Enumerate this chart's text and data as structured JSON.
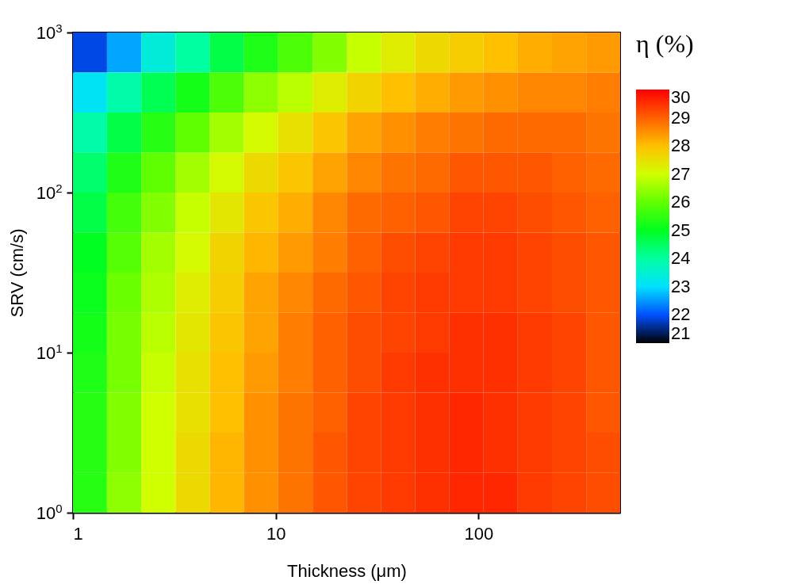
{
  "chart_data": {
    "type": "heatmap",
    "xlabel": "Thickness (μm)",
    "ylabel": "SRV (cm/s)",
    "clabel": "η (%)",
    "log": "xy",
    "xlim": [
      1,
      500
    ],
    "xticks": [
      1,
      10,
      100
    ],
    "ylim": [
      1,
      1000
    ],
    "yticks": [
      {
        "value": 1,
        "label": "10$^{0}$"
      },
      {
        "value": 10,
        "label": "10$^{1}$"
      },
      {
        "value": 100,
        "label": "10$^{2}$"
      },
      {
        "value": 1000,
        "label": "10$^{3}$"
      }
    ],
    "x": [
      1.21,
      1.79,
      2.64,
      3.9,
      5.74,
      8.47,
      12.5,
      18.5,
      27.2,
      40.1,
      59.2,
      87.3,
      128.5,
      189.7,
      280,
      413
    ],
    "y": [
      750,
      422,
      237,
      133,
      75,
      42.2,
      23.7,
      13.3,
      7.5,
      4.22,
      2.37,
      1.33
    ],
    "cells": [
      [
        21.9,
        22.6,
        23.4,
        24.0,
        24.7,
        25.3,
        25.8,
        26.3,
        26.9,
        27.3,
        27.6,
        27.8,
        28.0,
        28.2,
        28.3,
        28.4
      ],
      [
        23.1,
        23.9,
        24.6,
        25.2,
        25.8,
        26.4,
        26.8,
        27.3,
        27.7,
        28.0,
        28.2,
        28.4,
        28.5,
        28.6,
        28.6,
        28.7
      ],
      [
        23.9,
        24.7,
        25.4,
        26.0,
        26.6,
        27.1,
        27.5,
        27.9,
        28.3,
        28.5,
        28.7,
        28.8,
        28.9,
        28.9,
        28.9,
        28.8
      ],
      [
        24.4,
        25.3,
        26.0,
        26.6,
        27.1,
        27.6,
        27.9,
        28.3,
        28.6,
        28.8,
        28.9,
        29.1,
        29.1,
        29.1,
        29.0,
        28.9
      ],
      [
        24.7,
        25.7,
        26.3,
        26.9,
        27.4,
        27.9,
        28.2,
        28.6,
        28.9,
        29.0,
        29.1,
        29.3,
        29.3,
        29.2,
        29.1,
        29.0
      ],
      [
        25.0,
        25.9,
        26.6,
        27.1,
        27.7,
        28.1,
        28.4,
        28.7,
        29.0,
        29.2,
        29.3,
        29.4,
        29.4,
        29.3,
        29.2,
        29.1
      ],
      [
        25.1,
        26.1,
        26.7,
        27.3,
        27.8,
        28.3,
        28.6,
        28.9,
        29.1,
        29.3,
        29.4,
        29.4,
        29.4,
        29.3,
        29.2,
        29.1
      ],
      [
        25.2,
        26.2,
        26.8,
        27.4,
        27.9,
        28.3,
        28.7,
        29.0,
        29.2,
        29.3,
        29.4,
        29.5,
        29.5,
        29.4,
        29.3,
        29.1
      ],
      [
        25.3,
        26.2,
        26.9,
        27.5,
        28.0,
        28.4,
        28.7,
        29.0,
        29.2,
        29.4,
        29.5,
        29.5,
        29.5,
        29.4,
        29.3,
        29.1
      ],
      [
        25.4,
        26.3,
        27.0,
        27.5,
        28.0,
        28.5,
        28.8,
        29.0,
        29.3,
        29.4,
        29.5,
        29.6,
        29.5,
        29.4,
        29.3,
        29.1
      ],
      [
        25.4,
        26.3,
        27.0,
        27.6,
        28.1,
        28.5,
        28.8,
        29.1,
        29.3,
        29.4,
        29.5,
        29.6,
        29.5,
        29.4,
        29.3,
        29.2
      ],
      [
        25.4,
        26.4,
        27.0,
        27.6,
        28.1,
        28.5,
        28.8,
        29.1,
        29.3,
        29.4,
        29.5,
        29.6,
        29.6,
        29.4,
        29.3,
        29.2
      ]
    ],
    "clim": [
      21,
      30
    ],
    "cticks": [
      21,
      22,
      23,
      24,
      25,
      26,
      27,
      28,
      29,
      30
    ],
    "colors": [
      "#000000",
      "#0050ff",
      "#00e0ff",
      "#00ffa0",
      "#00ff20",
      "#60ff00",
      "#d0ff00",
      "#ffc000",
      "#ff6000",
      "#ff0000"
    ]
  }
}
